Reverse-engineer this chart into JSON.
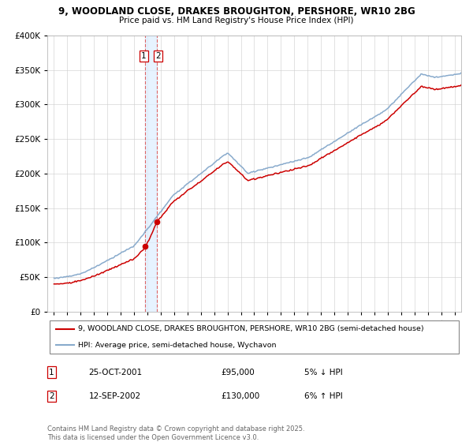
{
  "title_line1": "9, WOODLAND CLOSE, DRAKES BROUGHTON, PERSHORE, WR10 2BG",
  "title_line2": "Price paid vs. HM Land Registry's House Price Index (HPI)",
  "legend_label_red": "9, WOODLAND CLOSE, DRAKES BROUGHTON, PERSHORE, WR10 2BG (semi-detached house)",
  "legend_label_blue": "HPI: Average price, semi-detached house, Wychavon",
  "transaction1_date": "25-OCT-2001",
  "transaction1_price": "£95,000",
  "transaction1_hpi": "5% ↓ HPI",
  "transaction2_date": "12-SEP-2002",
  "transaction2_price": "£130,000",
  "transaction2_hpi": "6% ↑ HPI",
  "footnote": "Contains HM Land Registry data © Crown copyright and database right 2025.\nThis data is licensed under the Open Government Licence v3.0.",
  "transaction1_x": 2001.82,
  "transaction2_x": 2002.71,
  "transaction1_price_val": 95000,
  "transaction2_price_val": 130000,
  "color_red": "#cc0000",
  "color_blue": "#88aacc",
  "color_vline": "#dd6666",
  "color_vband": "#ddeeff",
  "ylim_min": 0,
  "ylim_max": 400000,
  "xlim_min": 1994.5,
  "xlim_max": 2025.5
}
